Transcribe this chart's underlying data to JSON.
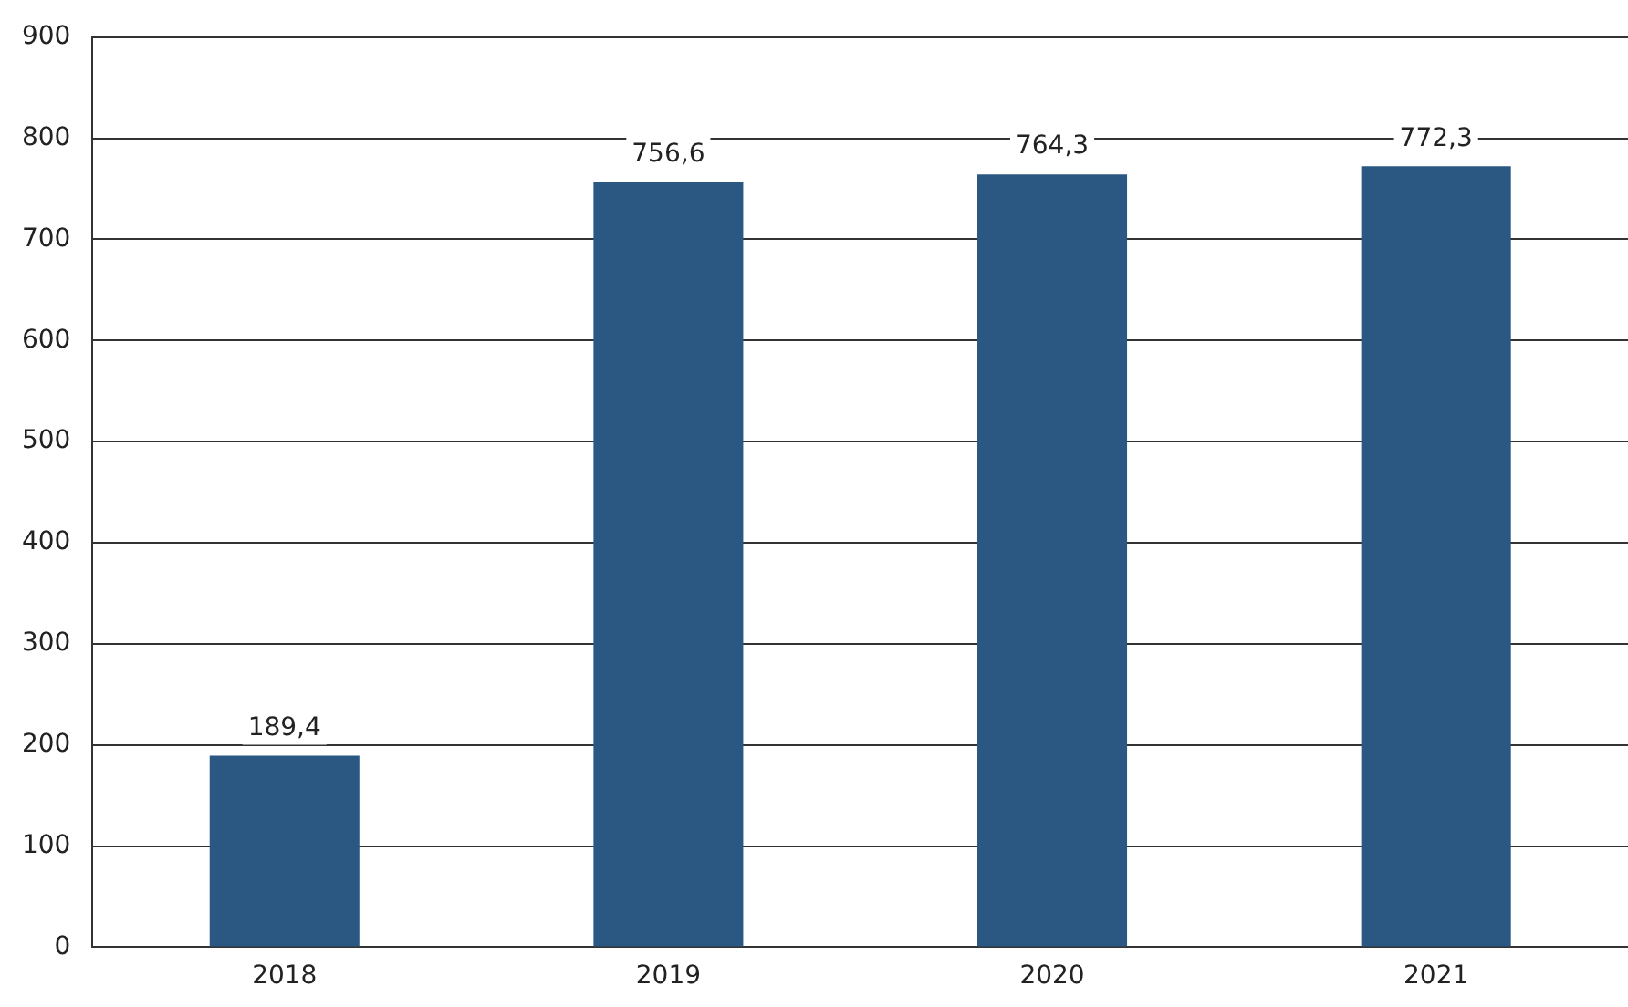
{
  "chart_data": {
    "type": "bar",
    "categories": [
      "2018",
      "2019",
      "2020",
      "2021"
    ],
    "values": [
      189.4,
      756.6,
      764.3,
      772.3
    ],
    "value_labels": [
      "189,4",
      "756,6",
      "764,3",
      "772,3"
    ],
    "color": "#2b5783",
    "ylim": [
      0,
      900
    ],
    "yticks": [
      0,
      100,
      200,
      300,
      400,
      500,
      600,
      700,
      800,
      900
    ],
    "grid": "y",
    "legend": false
  }
}
